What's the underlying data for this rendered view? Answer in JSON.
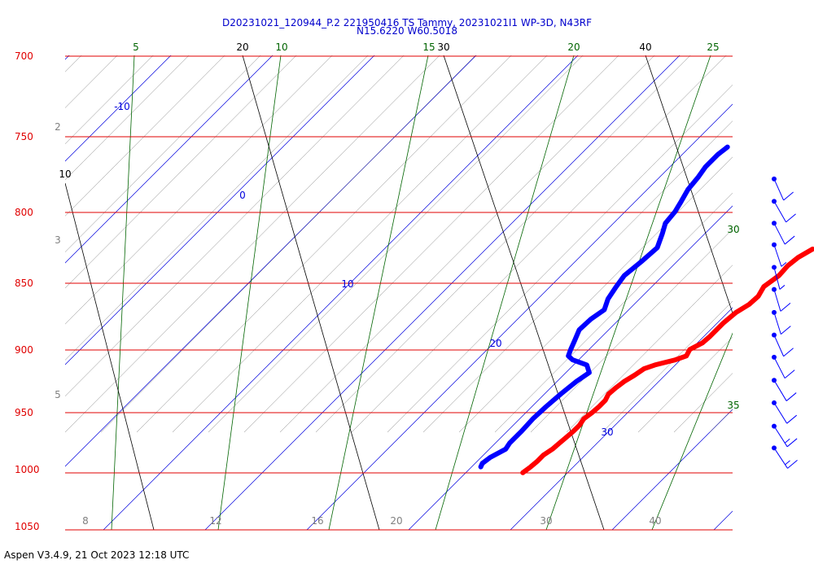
{
  "header": {
    "title": "D20231021_120944_P.2 221950416 TS Tammy, 20231021I1 WP-3D, N43RF",
    "subtitle": "N15.6220 W60.5018"
  },
  "footer": {
    "text": "Aspen V3.4.9, 21 Oct 2023  12:18 UTC"
  },
  "colors": {
    "isobar": "#e00000",
    "isotherm": "#0000dd",
    "dry_adiabat": "#000000",
    "moist_adiabat": "#606060",
    "mixing_ratio": "#006400",
    "temperature": "#ff0000",
    "dewpoint": "#0000ff",
    "wind": "#0000ff"
  },
  "chart_data": {
    "type": "line",
    "title": "D20231021_120944_P.2 221950416 TS Tammy, 20231021I1 WP-3D, N43RF",
    "subtitle": "N15.6220 W60.5018",
    "chart_kind": "skew-T log-P",
    "ylabel": "",
    "xlabel": "",
    "pressure_levels": [
      "700",
      "750",
      "800",
      "850",
      "900",
      "950",
      "1000",
      "1050"
    ],
    "isotherm_labels": [
      {
        "text": "-10",
        "value": -10,
        "pressure": 740
      },
      {
        "text": "0",
        "value": 0,
        "pressure": 795
      },
      {
        "text": "10",
        "value": 10,
        "pressure": 860
      },
      {
        "text": "20",
        "value": 20,
        "pressure": 918
      },
      {
        "text": "30",
        "value": 30,
        "pressure": 983
      }
    ],
    "bottom_temp_labels": [
      "8",
      "12",
      "16",
      "20",
      "30",
      "40"
    ],
    "dry_adiabat_labels": [
      "10",
      "20",
      "30",
      "40"
    ],
    "mixing_ratio_labels": [
      "5",
      "10",
      "15",
      "20",
      "25",
      "30",
      "35"
    ],
    "moist_labels": [
      "2",
      "3",
      "5"
    ],
    "series": [
      {
        "name": "Temperature",
        "color": "#ff0000",
        "points": [
          {
            "p": 1000,
            "t": 25.6
          },
          {
            "p": 995,
            "t": 25.8
          },
          {
            "p": 990,
            "t": 25.9
          },
          {
            "p": 985,
            "t": 25.9
          },
          {
            "p": 980,
            "t": 26.2
          },
          {
            "p": 975,
            "t": 26.3
          },
          {
            "p": 970,
            "t": 26.4
          },
          {
            "p": 965,
            "t": 26.5
          },
          {
            "p": 960,
            "t": 26.5
          },
          {
            "p": 955,
            "t": 26.3
          },
          {
            "p": 950,
            "t": 26.5
          },
          {
            "p": 945,
            "t": 26.6
          },
          {
            "p": 940,
            "t": 26.6
          },
          {
            "p": 935,
            "t": 26.3
          },
          {
            "p": 930,
            "t": 26.4
          },
          {
            "p": 925,
            "t": 26.6
          },
          {
            "p": 920,
            "t": 27.0
          },
          {
            "p": 915,
            "t": 27.3
          },
          {
            "p": 912,
            "t": 28.0
          },
          {
            "p": 908,
            "t": 29.5
          },
          {
            "p": 905,
            "t": 30.2
          },
          {
            "p": 900,
            "t": 29.9
          },
          {
            "p": 895,
            "t": 30.5
          },
          {
            "p": 890,
            "t": 30.6
          },
          {
            "p": 880,
            "t": 30.6
          },
          {
            "p": 872,
            "t": 30.8
          },
          {
            "p": 866,
            "t": 31.3
          },
          {
            "p": 860,
            "t": 31.4
          },
          {
            "p": 853,
            "t": 31.0
          },
          {
            "p": 845,
            "t": 31.4
          },
          {
            "p": 838,
            "t": 31.3
          },
          {
            "p": 832,
            "t": 31.5
          },
          {
            "p": 826,
            "t": 32.1
          }
        ]
      },
      {
        "name": "Dewpoint",
        "color": "#0000ff",
        "points": [
          {
            "p": 995,
            "t": 20.9
          },
          {
            "p": 992,
            "t": 20.7
          },
          {
            "p": 987,
            "t": 20.9
          },
          {
            "p": 980,
            "t": 21.6
          },
          {
            "p": 975,
            "t": 21.4
          },
          {
            "p": 965,
            "t": 21.4
          },
          {
            "p": 955,
            "t": 21.3
          },
          {
            "p": 945,
            "t": 21.4
          },
          {
            "p": 935,
            "t": 21.6
          },
          {
            "p": 925,
            "t": 21.9
          },
          {
            "p": 918,
            "t": 22.3
          },
          {
            "p": 912,
            "t": 21.3
          },
          {
            "p": 908,
            "t": 19.4
          },
          {
            "p": 905,
            "t": 18.6
          },
          {
            "p": 900,
            "t": 18.2
          },
          {
            "p": 893,
            "t": 17.7
          },
          {
            "p": 885,
            "t": 17.1
          },
          {
            "p": 877,
            "t": 17.2
          },
          {
            "p": 870,
            "t": 17.6
          },
          {
            "p": 862,
            "t": 16.9
          },
          {
            "p": 853,
            "t": 16.5
          },
          {
            "p": 845,
            "t": 16.2
          },
          {
            "p": 835,
            "t": 16.5
          },
          {
            "p": 825,
            "t": 16.7
          },
          {
            "p": 815,
            "t": 15.8
          },
          {
            "p": 808,
            "t": 15.1
          },
          {
            "p": 800,
            "t": 14.9
          },
          {
            "p": 793,
            "t": 14.5
          },
          {
            "p": 785,
            "t": 14.0
          },
          {
            "p": 777,
            "t": 13.8
          },
          {
            "p": 770,
            "t": 13.5
          },
          {
            "p": 762,
            "t": 13.5
          },
          {
            "p": 757,
            "t": 13.7
          }
        ]
      }
    ],
    "wind_barbs": [
      {
        "p": 778,
        "speed": 10,
        "dir": 150
      },
      {
        "p": 793,
        "speed": 10,
        "dir": 130
      },
      {
        "p": 808,
        "speed": 10,
        "dir": 140
      },
      {
        "p": 823,
        "speed": 5,
        "dir": 165
      },
      {
        "p": 839,
        "speed": 5,
        "dir": 175
      },
      {
        "p": 855,
        "speed": 10,
        "dir": 170
      },
      {
        "p": 872,
        "speed": 10,
        "dir": 168
      },
      {
        "p": 889,
        "speed": 10,
        "dir": 150
      },
      {
        "p": 906,
        "speed": 10,
        "dir": 140
      },
      {
        "p": 924,
        "speed": 10,
        "dir": 125
      },
      {
        "p": 942,
        "speed": 10,
        "dir": 120
      },
      {
        "p": 961,
        "speed": 15,
        "dir": 115
      },
      {
        "p": 979,
        "speed": 15,
        "dir": 110
      }
    ]
  }
}
